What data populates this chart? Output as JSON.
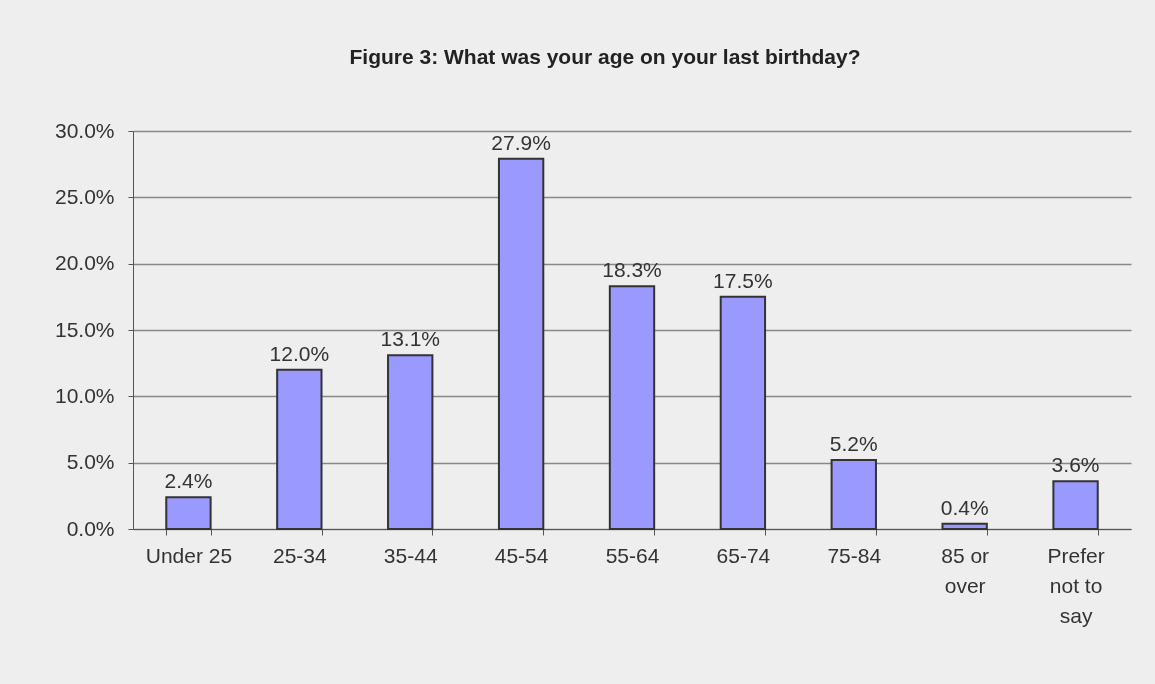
{
  "chart_data": {
    "type": "bar",
    "title": "Figure 3: What was your age on your last birthday?",
    "categories": [
      "Under 25",
      "25-34",
      "35-44",
      "45-54",
      "55-64",
      "65-74",
      "75-84",
      "85 or over",
      "Prefer not to say"
    ],
    "values": [
      2.4,
      12.0,
      13.1,
      27.9,
      18.3,
      17.5,
      5.2,
      0.4,
      3.6
    ],
    "value_labels": [
      "2.4%",
      "12.0%",
      "13.1%",
      "27.9%",
      "18.3%",
      "17.5%",
      "5.2%",
      "0.4%",
      "3.6%"
    ],
    "color": "#9999ff",
    "ylim": [
      0,
      30
    ],
    "yticks": [
      {
        "value": 0,
        "label": "0.0%"
      },
      {
        "value": 5,
        "label": "5.0%"
      },
      {
        "value": 10,
        "label": "10.0%"
      },
      {
        "value": 15,
        "label": "15.0%"
      },
      {
        "value": 20,
        "label": "20.0%"
      },
      {
        "value": 25,
        "label": "25.0%"
      },
      {
        "value": 30,
        "label": "30.0%"
      }
    ],
    "grid": "y"
  }
}
